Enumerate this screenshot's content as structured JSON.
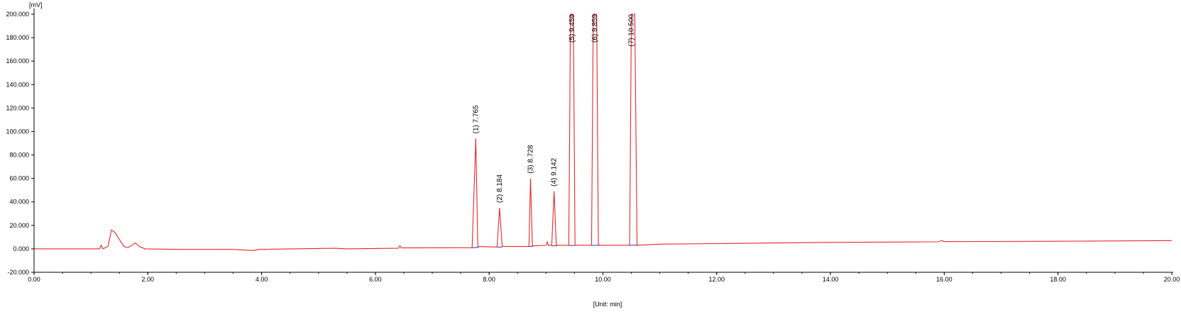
{
  "chart_data": {
    "type": "line",
    "title": "",
    "xlabel": "[Unit: min]",
    "ylabel": "[mV]",
    "xlim": [
      0,
      20
    ],
    "ylim": [
      -20,
      200
    ],
    "grid": false,
    "colors": {
      "trace": "#e8262b",
      "baseline": "#1f2fd6",
      "axis": "#000000"
    },
    "x_ticks": [
      "0.00",
      "2.00",
      "4.00",
      "6.00",
      "8.00",
      "10.00",
      "12.00",
      "14.00",
      "16.00",
      "18.00",
      "20.00"
    ],
    "y_ticks": [
      "-20.000",
      "0.000",
      "20.000",
      "40.000",
      "60.000",
      "80.000",
      "100.000",
      "120.000",
      "140.000",
      "160.000",
      "180.000",
      "200.000"
    ],
    "series": [
      {
        "points": [
          [
            0,
            0
          ],
          [
            1.15,
            0
          ],
          [
            1.18,
            3
          ],
          [
            1.21,
            0
          ],
          [
            1.3,
            2
          ],
          [
            1.36,
            16
          ],
          [
            1.42,
            14
          ],
          [
            1.5,
            8
          ],
          [
            1.58,
            2
          ],
          [
            1.65,
            1
          ],
          [
            1.72,
            3
          ],
          [
            1.78,
            5
          ],
          [
            1.85,
            2
          ],
          [
            1.95,
            0
          ],
          [
            2.5,
            -0.5
          ],
          [
            3.5,
            -0.5
          ],
          [
            3.85,
            -1.5
          ],
          [
            3.95,
            -0.5
          ],
          [
            5.3,
            0.5
          ],
          [
            5.5,
            0
          ],
          [
            6.4,
            0.5
          ],
          [
            6.43,
            2.5
          ],
          [
            6.46,
            0.8
          ],
          [
            7.7,
            1
          ],
          [
            7.765,
            94
          ],
          [
            7.8,
            2
          ],
          [
            8.14,
            1.5
          ],
          [
            8.184,
            35
          ],
          [
            8.23,
            2
          ],
          [
            8.7,
            2
          ],
          [
            8.728,
            60
          ],
          [
            8.76,
            2.5
          ],
          [
            9.0,
            3
          ],
          [
            9.02,
            6
          ],
          [
            9.04,
            3
          ],
          [
            9.1,
            3
          ],
          [
            9.142,
            49
          ],
          [
            9.18,
            3
          ],
          [
            9.4,
            3
          ],
          [
            9.43,
            200
          ],
          [
            9.48,
            200
          ],
          [
            9.51,
            3
          ],
          [
            9.8,
            3
          ],
          [
            9.83,
            200
          ],
          [
            9.89,
            200
          ],
          [
            9.92,
            3
          ],
          [
            10.47,
            3
          ],
          [
            10.5,
            200
          ],
          [
            10.56,
            200
          ],
          [
            10.6,
            3
          ],
          [
            11,
            4
          ],
          [
            12,
            4.5
          ],
          [
            14,
            5.5
          ],
          [
            15.9,
            6
          ],
          [
            15.95,
            7
          ],
          [
            16,
            6.2
          ],
          [
            18,
            6.5
          ],
          [
            20,
            7
          ]
        ]
      }
    ],
    "peaks": [
      {
        "label": "(1) 7.765",
        "rt": 7.765,
        "height": 94
      },
      {
        "label": "(2) 8.184",
        "rt": 8.184,
        "height": 35
      },
      {
        "label": "(3) 8.728",
        "rt": 8.728,
        "height": 60
      },
      {
        "label": "(4) 9.142",
        "rt": 9.142,
        "height": 49
      },
      {
        "label": "(5) 9.459",
        "rt": 9.459,
        "height": 200
      },
      {
        "label": "(6) 9.859",
        "rt": 9.859,
        "height": 200
      },
      {
        "label": "(7) 10.500",
        "rt": 10.5,
        "height": 200
      }
    ],
    "baselines": [
      [
        7.7,
        1,
        7.82,
        1.2
      ],
      [
        8.15,
        1.4,
        8.23,
        1.6
      ],
      [
        8.68,
        2,
        8.78,
        2.2
      ],
      [
        9.1,
        2.5,
        9.2,
        2.7
      ],
      [
        9.4,
        2.8,
        9.55,
        3
      ],
      [
        9.8,
        2.9,
        9.95,
        3.1
      ],
      [
        10.45,
        3,
        10.62,
        3.2
      ]
    ]
  }
}
